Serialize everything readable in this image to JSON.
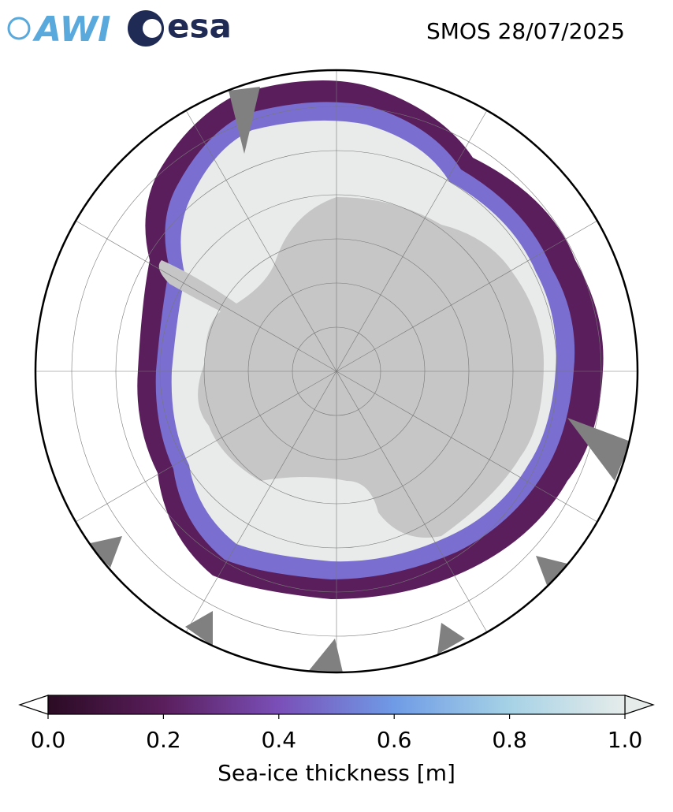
{
  "logos": [
    "AWI",
    "esa"
  ],
  "title": "SMOS 28/07/2025",
  "colorbar": {
    "label": "Sea-ice thickness [m]",
    "lim": [
      0,
      1
    ],
    "ticks": [
      {
        "value": 0,
        "label": "0.0"
      },
      {
        "value": 0.2,
        "label": "0.2"
      },
      {
        "value": 0.4,
        "label": "0.4"
      },
      {
        "value": 0.6,
        "label": "0.6"
      },
      {
        "value": 0.8,
        "label": "0.8"
      },
      {
        "value": 1,
        "label": "1.0"
      }
    ],
    "colors": [
      "#2b0b24",
      "#5a1e5c",
      "#7a4fb8",
      "#6f9be6",
      "#a6d2e6",
      "#e6ecea"
    ]
  }
}
